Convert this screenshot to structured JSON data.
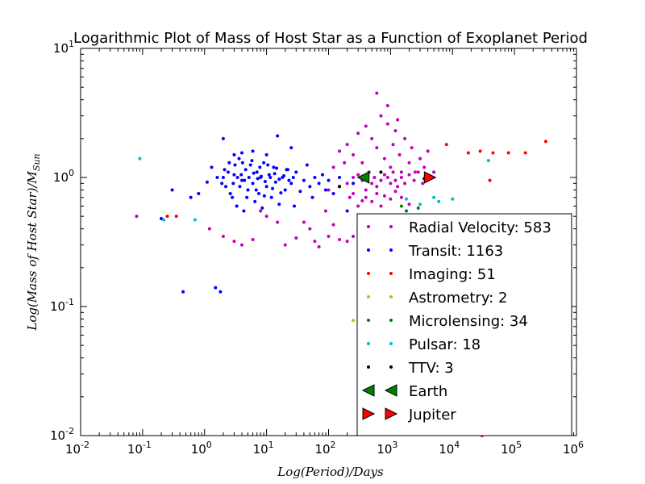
{
  "chart_data": {
    "type": "scatter",
    "title": "Logarithmic Plot of Mass of Host Star as a Function of Exoplanet Period",
    "xlabel": "Log(Period)/Days",
    "ylabel": "Log(Mass of Host Star)/M_Sun",
    "x_scale": "log",
    "y_scale": "log",
    "xlim": [
      0.01,
      1000000
    ],
    "ylim": [
      0.01,
      10
    ],
    "x_ticks": [
      {
        "value": 0.01,
        "base": "10",
        "exp": "-2"
      },
      {
        "value": 0.1,
        "base": "10",
        "exp": "-1"
      },
      {
        "value": 1,
        "base": "10",
        "exp": "0"
      },
      {
        "value": 10,
        "base": "10",
        "exp": "1"
      },
      {
        "value": 100,
        "base": "10",
        "exp": "2"
      },
      {
        "value": 1000,
        "base": "10",
        "exp": "3"
      },
      {
        "value": 10000,
        "base": "10",
        "exp": "4"
      },
      {
        "value": 100000,
        "base": "10",
        "exp": "5"
      },
      {
        "value": 1000000,
        "base": "10",
        "exp": "6"
      }
    ],
    "y_ticks": [
      {
        "value": 0.01,
        "base": "10",
        "exp": "-2"
      },
      {
        "value": 0.1,
        "base": "10",
        "exp": "-1"
      },
      {
        "value": 1,
        "base": "10",
        "exp": "0"
      },
      {
        "value": 10,
        "base": "10",
        "exp": "1"
      }
    ],
    "legend_placement": "lower-right",
    "series": [
      {
        "name": "Radial Velocity: 583",
        "color": "#bf00bf",
        "marker": "dot",
        "points": [
          [
            0.08,
            0.5
          ],
          [
            1.2,
            0.4
          ],
          [
            2,
            0.35
          ],
          [
            3,
            0.32
          ],
          [
            4,
            0.3
          ],
          [
            6,
            0.33
          ],
          [
            8,
            0.55
          ],
          [
            10,
            0.5
          ],
          [
            15,
            0.45
          ],
          [
            20,
            0.3
          ],
          [
            30,
            0.34
          ],
          [
            40,
            0.45
          ],
          [
            50,
            0.4
          ],
          [
            60,
            0.32
          ],
          [
            70,
            0.29
          ],
          [
            90,
            0.55
          ],
          [
            100,
            0.35
          ],
          [
            120,
            0.43
          ],
          [
            150,
            0.33
          ],
          [
            200,
            0.32
          ],
          [
            250,
            0.35
          ],
          [
            300,
            0.38
          ],
          [
            400,
            0.34
          ],
          [
            500,
            0.42
          ],
          [
            600,
            0.5
          ],
          [
            150,
            1.6
          ],
          [
            200,
            1.8
          ],
          [
            250,
            1.5
          ],
          [
            300,
            2.2
          ],
          [
            350,
            1.3
          ],
          [
            400,
            2.5
          ],
          [
            450,
            1.1
          ],
          [
            500,
            2.0
          ],
          [
            600,
            1.7
          ],
          [
            700,
            3.0
          ],
          [
            800,
            1.4
          ],
          [
            900,
            2.6
          ],
          [
            1000,
            1.2
          ],
          [
            1100,
            1.8
          ],
          [
            1200,
            2.3
          ],
          [
            1400,
            1.5
          ],
          [
            1500,
            1.1
          ],
          [
            1700,
            2.0
          ],
          [
            2000,
            1.3
          ],
          [
            2200,
            1.7
          ],
          [
            2500,
            1.1
          ],
          [
            3000,
            1.4
          ],
          [
            3500,
            1.2
          ],
          [
            4000,
            1.6
          ],
          [
            5000,
            1.1
          ],
          [
            600,
            4.5
          ],
          [
            900,
            3.6
          ],
          [
            1300,
            2.8
          ],
          [
            150,
            0.85
          ],
          [
            200,
            0.9
          ],
          [
            250,
            1.0
          ],
          [
            300,
            1.05
          ],
          [
            350,
            0.95
          ],
          [
            400,
            0.8
          ],
          [
            450,
            1.1
          ],
          [
            500,
            0.9
          ],
          [
            550,
            1.0
          ],
          [
            600,
            0.85
          ],
          [
            700,
            0.95
          ],
          [
            800,
            1.05
          ],
          [
            900,
            1.0
          ],
          [
            1000,
            0.9
          ],
          [
            1100,
            1.1
          ],
          [
            1200,
            0.95
          ],
          [
            1300,
            0.85
          ],
          [
            1500,
            1.0
          ],
          [
            1700,
            0.9
          ],
          [
            2000,
            1.05
          ],
          [
            2400,
            0.95
          ],
          [
            2800,
            1.1
          ],
          [
            3300,
            0.9
          ],
          [
            400,
            0.7
          ],
          [
            500,
            0.65
          ],
          [
            600,
            0.75
          ],
          [
            700,
            0.6
          ],
          [
            800,
            0.72
          ],
          [
            1000,
            0.68
          ],
          [
            1200,
            0.78
          ],
          [
            1500,
            0.7
          ],
          [
            2000,
            0.62
          ],
          [
            300,
            0.6
          ],
          [
            250,
            0.75
          ],
          [
            350,
            0.66
          ],
          [
            120,
            1.2
          ],
          [
            100,
            0.8
          ],
          [
            180,
            1.3
          ],
          [
            220,
            0.7
          ]
        ]
      },
      {
        "name": "Transit: 1163",
        "color": "#0000ff",
        "marker": "dot",
        "points": [
          [
            0.2,
            0.48
          ],
          [
            0.3,
            0.8
          ],
          [
            0.45,
            0.13
          ],
          [
            0.6,
            0.7
          ],
          [
            0.8,
            0.75
          ],
          [
            1.1,
            0.92
          ],
          [
            1.3,
            1.2
          ],
          [
            1.5,
            0.14
          ],
          [
            1.8,
            0.13
          ],
          [
            2,
            2.0
          ],
          [
            2.2,
            0.85
          ],
          [
            2.5,
            1.3
          ],
          [
            2.8,
            0.7
          ],
          [
            3,
            1.05
          ],
          [
            3.3,
            0.6
          ],
          [
            3.6,
            1.4
          ],
          [
            4,
            0.95
          ],
          [
            4.3,
            0.55
          ],
          [
            4.6,
            1.15
          ],
          [
            5,
            0.8
          ],
          [
            5.5,
            1.25
          ],
          [
            6,
            0.9
          ],
          [
            6.5,
            0.65
          ],
          [
            7,
            1.1
          ],
          [
            7.5,
            0.75
          ],
          [
            8,
            1.0
          ],
          [
            8.5,
            0.58
          ],
          [
            9,
            1.3
          ],
          [
            10,
            0.85
          ],
          [
            11,
            1.05
          ],
          [
            12,
            0.7
          ],
          [
            13,
            1.2
          ],
          [
            14,
            0.92
          ],
          [
            15,
            2.1
          ],
          [
            16,
            0.62
          ],
          [
            18,
            1.0
          ],
          [
            20,
            0.8
          ],
          [
            22,
            1.15
          ],
          [
            25,
            0.9
          ],
          [
            28,
            0.6
          ],
          [
            30,
            1.1
          ],
          [
            35,
            0.78
          ],
          [
            40,
            0.95
          ],
          [
            45,
            1.25
          ],
          [
            50,
            0.85
          ],
          [
            55,
            0.7
          ],
          [
            60,
            1.0
          ],
          [
            70,
            0.9
          ],
          [
            80,
            1.05
          ],
          [
            90,
            0.8
          ],
          [
            100,
            0.95
          ],
          [
            2,
            1.0
          ],
          [
            2.4,
            1.1
          ],
          [
            2.9,
            0.9
          ],
          [
            3.4,
            1.0
          ],
          [
            3.9,
            1.05
          ],
          [
            4.4,
            0.95
          ],
          [
            5.2,
            1.0
          ],
          [
            6.2,
            1.08
          ],
          [
            7.2,
            0.98
          ],
          [
            8.2,
            1.02
          ],
          [
            9.5,
            0.93
          ],
          [
            11.5,
            1.0
          ],
          [
            13.5,
            1.07
          ],
          [
            16,
            0.97
          ],
          [
            19,
            1.03
          ],
          [
            23,
            0.95
          ],
          [
            27,
            1.0
          ],
          [
            2.6,
            0.75
          ],
          [
            3.1,
            1.25
          ],
          [
            3.7,
            0.85
          ],
          [
            4.1,
            1.3
          ],
          [
            4.8,
            0.7
          ],
          [
            5.8,
            1.35
          ],
          [
            6.8,
            0.8
          ],
          [
            7.8,
            1.2
          ],
          [
            9.2,
            0.72
          ],
          [
            10.5,
            1.25
          ],
          [
            12.5,
            0.82
          ],
          [
            14.5,
            1.18
          ],
          [
            17,
            0.76
          ],
          [
            21,
            1.15
          ],
          [
            1.6,
            1.0
          ],
          [
            1.9,
            0.9
          ],
          [
            2.1,
            1.15
          ],
          [
            200,
            0.55
          ],
          [
            250,
            0.9
          ],
          [
            150,
            1.0
          ],
          [
            120,
            0.75
          ],
          [
            25,
            1.7
          ],
          [
            10,
            1.5
          ],
          [
            6,
            1.6
          ],
          [
            4,
            1.55
          ],
          [
            3,
            1.5
          ]
        ]
      },
      {
        "name": "Imaging: 51",
        "color": "#ff0000",
        "marker": "dot",
        "points": [
          [
            0.25,
            0.5
          ],
          [
            0.35,
            0.5
          ],
          [
            8000,
            1.8
          ],
          [
            18000,
            1.55
          ],
          [
            28000,
            1.6
          ],
          [
            45000,
            1.55
          ],
          [
            80000,
            1.55
          ],
          [
            150000,
            1.55
          ],
          [
            320000,
            1.9
          ],
          [
            40000,
            0.95
          ],
          [
            30000,
            0.01
          ]
        ]
      },
      {
        "name": "Astrometry: 2",
        "color": "#bfbf00",
        "marker": "dot",
        "points": [
          [
            250,
            0.078
          ],
          [
            800,
            0.085
          ]
        ]
      },
      {
        "name": "Microlensing: 34",
        "color": "#007f00",
        "marker": "dot",
        "points": [
          [
            1800,
            0.55
          ],
          [
            2800,
            0.58
          ],
          [
            3500,
            0.3
          ],
          [
            3200,
            0.12
          ],
          [
            2500,
            0.1
          ],
          [
            4000,
            0.45
          ],
          [
            1500,
            0.6
          ]
        ]
      },
      {
        "name": "Pulsar: 18",
        "color": "#00bfbf",
        "marker": "dot",
        "points": [
          [
            0.09,
            1.4
          ],
          [
            0.22,
            0.47
          ],
          [
            0.7,
            0.47
          ],
          [
            1800,
            0.68
          ],
          [
            3000,
            0.62
          ],
          [
            6000,
            0.65
          ],
          [
            10000,
            0.68
          ],
          [
            38000,
            1.35
          ],
          [
            5000,
            0.7
          ]
        ]
      },
      {
        "name": "TTV: 3",
        "color": "#000000",
        "marker": "dot",
        "points": [
          [
            150,
            0.85
          ],
          [
            700,
            1.1
          ],
          [
            3500,
            0.98
          ]
        ]
      },
      {
        "name": "Earth",
        "color": "#008000",
        "marker": "triangle-left",
        "points": [
          [
            365,
            1.0
          ]
        ]
      },
      {
        "name": "Jupiter",
        "color": "#ff0000",
        "marker": "triangle-right",
        "points": [
          [
            4333,
            1.0
          ]
        ]
      }
    ]
  }
}
